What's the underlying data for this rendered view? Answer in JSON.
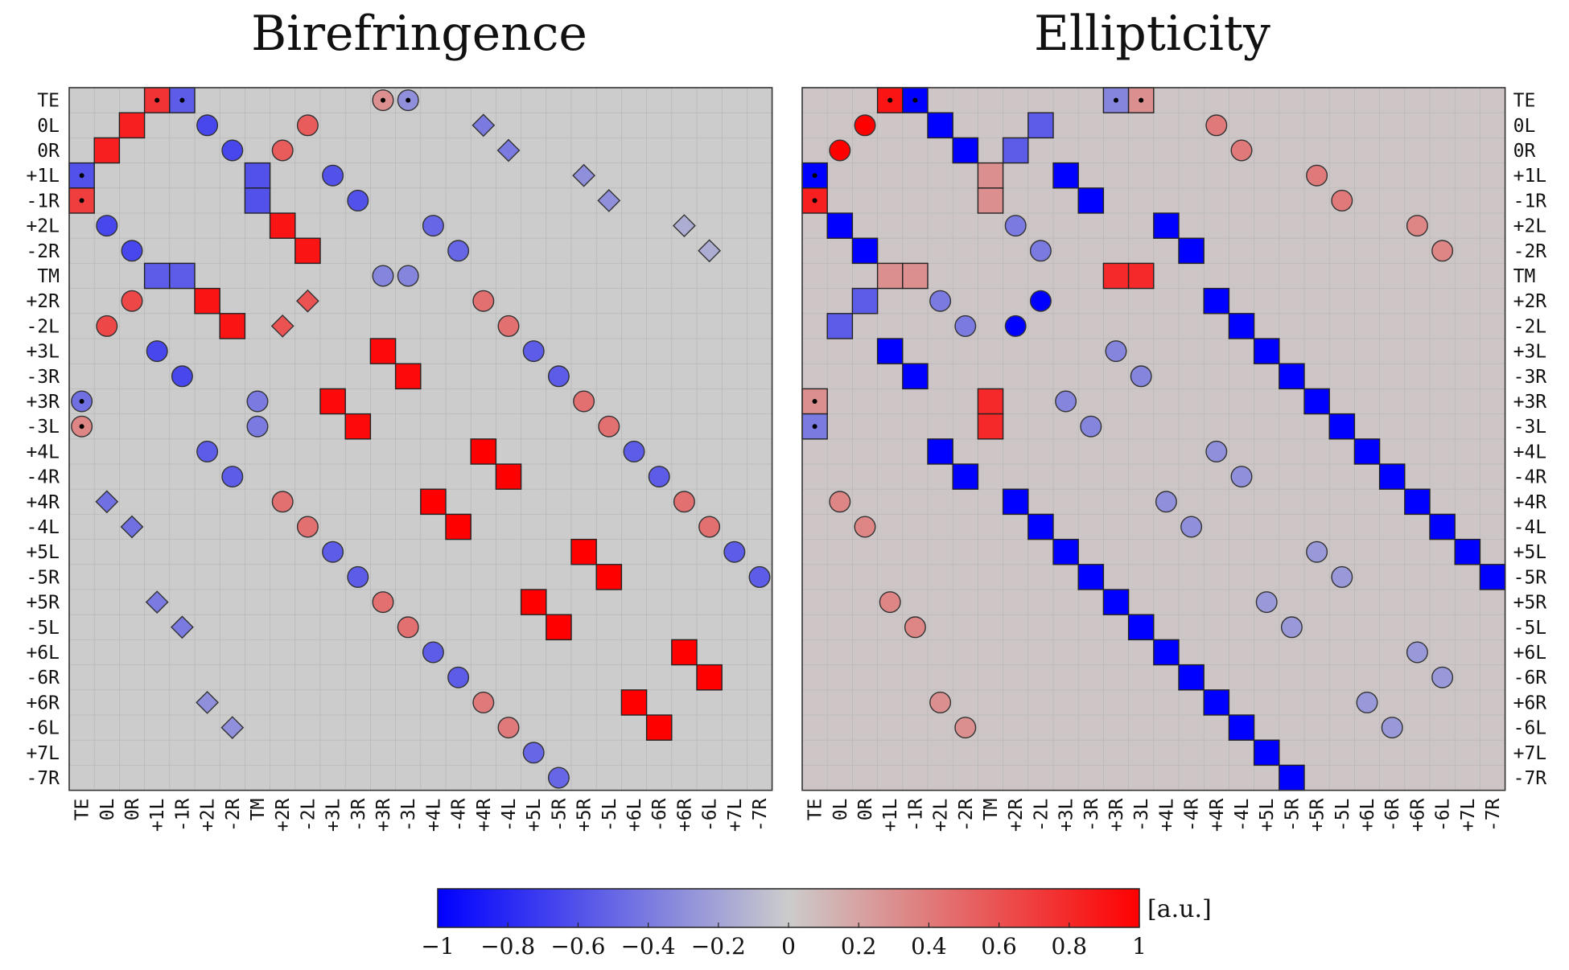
{
  "chart_data": {
    "type": "heatmap",
    "labels": [
      "TE",
      "0L",
      "0R",
      "+1L",
      "-1R",
      "+2L",
      "-2R",
      "TM",
      "+2R",
      "-2L",
      "+3L",
      "-3R",
      "+3R",
      "-3L",
      "+4L",
      "-4R",
      "+4R",
      "-4L",
      "+5L",
      "-5R",
      "+5R",
      "-5L",
      "+6L",
      "-6R",
      "+6R",
      "-6L",
      "+7L",
      "-7R"
    ],
    "colorbar": {
      "range": [
        -1,
        1
      ],
      "ticks": [
        -1,
        -0.8,
        -0.6,
        -0.4,
        -0.2,
        0,
        0.2,
        0.4,
        0.6,
        0.8,
        1
      ],
      "tick_labels": [
        "−1",
        "−0.8",
        "−0.6",
        "−0.4",
        "−0.2",
        "0",
        "0.2",
        "0.4",
        "0.6",
        "0.8",
        "1"
      ],
      "unit_label": "[a.u.]",
      "colors": {
        "low": "#0000ff",
        "mid": "#cccccc",
        "high": "#ff0000"
      }
    },
    "panels": [
      {
        "title": "Birefringence",
        "ylabels_side": "left",
        "background_value": 0,
        "cells": [
          [
            "square",
            0,
            3,
            0.75,
            true
          ],
          [
            "square",
            0,
            4,
            -0.55,
            true
          ],
          [
            "circle",
            0,
            12,
            0.3,
            true
          ],
          [
            "circle",
            0,
            13,
            -0.3,
            true
          ],
          [
            "square",
            1,
            2,
            0.85
          ],
          [
            "circle",
            1,
            5,
            -0.65
          ],
          [
            "circle",
            1,
            9,
            0.55
          ],
          [
            "diamond",
            1,
            16,
            -0.4
          ],
          [
            "square",
            2,
            1,
            0.85
          ],
          [
            "circle",
            2,
            6,
            -0.65
          ],
          [
            "circle",
            2,
            8,
            0.55
          ],
          [
            "diamond",
            2,
            17,
            -0.4
          ],
          [
            "square",
            3,
            0,
            -0.6,
            true
          ],
          [
            "square",
            3,
            7,
            -0.6
          ],
          [
            "circle",
            3,
            10,
            -0.6
          ],
          [
            "diamond",
            3,
            20,
            -0.3
          ],
          [
            "square",
            4,
            0,
            0.7,
            true
          ],
          [
            "square",
            4,
            7,
            -0.6
          ],
          [
            "circle",
            4,
            11,
            -0.6
          ],
          [
            "diamond",
            4,
            21,
            -0.3
          ],
          [
            "circle",
            5,
            1,
            -0.65
          ],
          [
            "square",
            5,
            8,
            0.9
          ],
          [
            "circle",
            5,
            14,
            -0.5
          ],
          [
            "diamond",
            5,
            24,
            -0.15
          ],
          [
            "circle",
            6,
            2,
            -0.65
          ],
          [
            "square",
            6,
            9,
            0.9
          ],
          [
            "circle",
            6,
            15,
            -0.5
          ],
          [
            "diamond",
            6,
            25,
            -0.15
          ],
          [
            "square",
            7,
            3,
            -0.55
          ],
          [
            "square",
            7,
            4,
            -0.55
          ],
          [
            "circle",
            7,
            12,
            -0.35
          ],
          [
            "circle",
            7,
            13,
            -0.35
          ],
          [
            "circle",
            8,
            2,
            0.65
          ],
          [
            "square",
            8,
            5,
            0.9
          ],
          [
            "diamond",
            8,
            9,
            0.6
          ],
          [
            "circle",
            8,
            16,
            0.45
          ],
          [
            "circle",
            9,
            1,
            0.65
          ],
          [
            "square",
            9,
            6,
            0.9
          ],
          [
            "diamond",
            9,
            8,
            0.6
          ],
          [
            "circle",
            9,
            17,
            0.45
          ],
          [
            "circle",
            10,
            3,
            -0.65
          ],
          [
            "square",
            10,
            12,
            0.95
          ],
          [
            "circle",
            10,
            18,
            -0.55
          ],
          [
            "circle",
            11,
            4,
            -0.65
          ],
          [
            "square",
            11,
            13,
            0.95
          ],
          [
            "circle",
            11,
            19,
            -0.55
          ],
          [
            "circle",
            12,
            0,
            -0.45,
            true
          ],
          [
            "circle",
            12,
            7,
            -0.4
          ],
          [
            "square",
            12,
            10,
            0.95
          ],
          [
            "circle",
            12,
            20,
            0.45
          ],
          [
            "circle",
            13,
            0,
            0.35,
            true
          ],
          [
            "circle",
            13,
            7,
            -0.4
          ],
          [
            "square",
            13,
            11,
            0.95
          ],
          [
            "circle",
            13,
            21,
            0.45
          ],
          [
            "circle",
            14,
            5,
            -0.55
          ],
          [
            "square",
            14,
            16,
            1.0
          ],
          [
            "circle",
            14,
            22,
            -0.55
          ],
          [
            "circle",
            15,
            6,
            -0.55
          ],
          [
            "square",
            15,
            17,
            1.0
          ],
          [
            "circle",
            15,
            23,
            -0.55
          ],
          [
            "diamond",
            16,
            1,
            -0.45
          ],
          [
            "circle",
            16,
            8,
            0.45
          ],
          [
            "square",
            16,
            14,
            1.0
          ],
          [
            "circle",
            16,
            24,
            0.45
          ],
          [
            "diamond",
            17,
            2,
            -0.45
          ],
          [
            "circle",
            17,
            9,
            0.45
          ],
          [
            "square",
            17,
            15,
            1.0
          ],
          [
            "circle",
            17,
            25,
            0.45
          ],
          [
            "circle",
            18,
            10,
            -0.55
          ],
          [
            "square",
            18,
            20,
            1.0
          ],
          [
            "circle",
            18,
            26,
            -0.55
          ],
          [
            "circle",
            19,
            11,
            -0.55
          ],
          [
            "square",
            19,
            21,
            1.0
          ],
          [
            "circle",
            19,
            27,
            -0.55
          ],
          [
            "diamond",
            20,
            3,
            -0.4
          ],
          [
            "circle",
            20,
            12,
            0.45
          ],
          [
            "square",
            20,
            18,
            1.0
          ],
          [
            "diamond",
            21,
            4,
            -0.4
          ],
          [
            "circle",
            21,
            13,
            0.45
          ],
          [
            "square",
            21,
            19,
            1.0
          ],
          [
            "circle",
            22,
            14,
            -0.55
          ],
          [
            "square",
            22,
            24,
            1.0
          ],
          [
            "circle",
            23,
            15,
            -0.55
          ],
          [
            "square",
            23,
            25,
            1.0
          ],
          [
            "diamond",
            24,
            5,
            -0.3
          ],
          [
            "circle",
            24,
            16,
            0.4
          ],
          [
            "square",
            24,
            22,
            1.0
          ],
          [
            "diamond",
            25,
            6,
            -0.3
          ],
          [
            "circle",
            25,
            17,
            0.4
          ],
          [
            "square",
            25,
            23,
            1.0
          ],
          [
            "circle",
            26,
            18,
            -0.5
          ],
          [
            "circle",
            27,
            19,
            -0.5
          ]
        ]
      },
      {
        "title": "Ellipticity",
        "ylabels_side": "right",
        "background_value": 0.03,
        "cells": [
          [
            "square",
            0,
            3,
            0.9,
            true
          ],
          [
            "square",
            0,
            4,
            -1.0,
            true
          ],
          [
            "square",
            0,
            12,
            -0.35,
            true
          ],
          [
            "square",
            0,
            13,
            0.3,
            true
          ],
          [
            "circle",
            1,
            2,
            1.0
          ],
          [
            "square",
            1,
            5,
            -1.0
          ],
          [
            "square",
            1,
            9,
            -0.55
          ],
          [
            "circle",
            1,
            16,
            0.4
          ],
          [
            "circle",
            2,
            1,
            1.0
          ],
          [
            "square",
            2,
            6,
            -1.0
          ],
          [
            "square",
            2,
            8,
            -0.55
          ],
          [
            "circle",
            2,
            17,
            0.4
          ],
          [
            "square",
            3,
            0,
            -1.0,
            true
          ],
          [
            "square",
            3,
            7,
            0.3
          ],
          [
            "square",
            3,
            10,
            -1.0
          ],
          [
            "circle",
            3,
            20,
            0.4
          ],
          [
            "square",
            4,
            0,
            0.85,
            true
          ],
          [
            "square",
            4,
            7,
            0.3
          ],
          [
            "square",
            4,
            11,
            -1.0
          ],
          [
            "circle",
            4,
            21,
            0.4
          ],
          [
            "square",
            5,
            1,
            -1.0
          ],
          [
            "circle",
            5,
            8,
            -0.4
          ],
          [
            "square",
            5,
            14,
            -1.0
          ],
          [
            "circle",
            5,
            24,
            0.35
          ],
          [
            "square",
            6,
            2,
            -1.0
          ],
          [
            "circle",
            6,
            9,
            -0.4
          ],
          [
            "square",
            6,
            15,
            -1.0
          ],
          [
            "circle",
            6,
            25,
            0.35
          ],
          [
            "square",
            7,
            3,
            0.3
          ],
          [
            "square",
            7,
            4,
            0.3
          ],
          [
            "square",
            7,
            12,
            0.8
          ],
          [
            "square",
            7,
            13,
            0.8
          ],
          [
            "square",
            8,
            2,
            -0.55
          ],
          [
            "circle",
            8,
            5,
            -0.4
          ],
          [
            "circle",
            8,
            9,
            -1.0
          ],
          [
            "square",
            8,
            16,
            -1.0
          ],
          [
            "square",
            9,
            1,
            -0.55
          ],
          [
            "circle",
            9,
            6,
            -0.4
          ],
          [
            "circle",
            9,
            8,
            -1.0
          ],
          [
            "square",
            9,
            17,
            -1.0
          ],
          [
            "square",
            10,
            3,
            -1.0
          ],
          [
            "circle",
            10,
            12,
            -0.35
          ],
          [
            "square",
            10,
            18,
            -1.0
          ],
          [
            "square",
            11,
            4,
            -1.0
          ],
          [
            "circle",
            11,
            13,
            -0.35
          ],
          [
            "square",
            11,
            19,
            -1.0
          ],
          [
            "square",
            12,
            0,
            0.3,
            true
          ],
          [
            "square",
            12,
            7,
            0.8
          ],
          [
            "circle",
            12,
            10,
            -0.35
          ],
          [
            "square",
            12,
            20,
            -1.0
          ],
          [
            "square",
            13,
            0,
            -0.4,
            true
          ],
          [
            "square",
            13,
            7,
            0.8
          ],
          [
            "circle",
            13,
            11,
            -0.35
          ],
          [
            "square",
            13,
            21,
            -1.0
          ],
          [
            "square",
            14,
            5,
            -1.0
          ],
          [
            "circle",
            14,
            16,
            -0.3
          ],
          [
            "square",
            14,
            22,
            -1.0
          ],
          [
            "square",
            15,
            6,
            -1.0
          ],
          [
            "circle",
            15,
            17,
            -0.3
          ],
          [
            "square",
            15,
            23,
            -1.0
          ],
          [
            "circle",
            16,
            1,
            0.35
          ],
          [
            "square",
            16,
            8,
            -1.0
          ],
          [
            "circle",
            16,
            14,
            -0.3
          ],
          [
            "square",
            16,
            24,
            -1.0
          ],
          [
            "circle",
            17,
            2,
            0.35
          ],
          [
            "square",
            17,
            9,
            -1.0
          ],
          [
            "circle",
            17,
            15,
            -0.3
          ],
          [
            "square",
            17,
            25,
            -1.0
          ],
          [
            "square",
            18,
            10,
            -1.0
          ],
          [
            "circle",
            18,
            20,
            -0.25
          ],
          [
            "square",
            18,
            26,
            -1.0
          ],
          [
            "square",
            19,
            11,
            -1.0
          ],
          [
            "circle",
            19,
            21,
            -0.25
          ],
          [
            "square",
            19,
            27,
            -1.0
          ],
          [
            "circle",
            20,
            3,
            0.35
          ],
          [
            "square",
            20,
            12,
            -1.0
          ],
          [
            "circle",
            20,
            18,
            -0.25
          ],
          [
            "circle",
            21,
            4,
            0.35
          ],
          [
            "square",
            21,
            13,
            -1.0
          ],
          [
            "circle",
            21,
            19,
            -0.25
          ],
          [
            "square",
            22,
            14,
            -1.0
          ],
          [
            "circle",
            22,
            24,
            -0.25
          ],
          [
            "square",
            23,
            15,
            -1.0
          ],
          [
            "circle",
            23,
            25,
            -0.25
          ],
          [
            "circle",
            24,
            5,
            0.3
          ],
          [
            "square",
            24,
            16,
            -1.0
          ],
          [
            "circle",
            24,
            22,
            -0.25
          ],
          [
            "circle",
            25,
            6,
            0.3
          ],
          [
            "square",
            25,
            17,
            -1.0
          ],
          [
            "circle",
            25,
            23,
            -0.25
          ],
          [
            "square",
            26,
            18,
            -1.0
          ],
          [
            "square",
            27,
            19,
            -1.0
          ]
        ]
      }
    ]
  }
}
